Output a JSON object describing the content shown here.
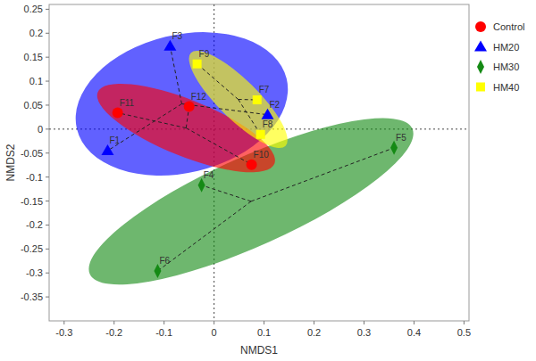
{
  "chart_data": {
    "type": "scatter",
    "x_label": "NMDS1",
    "y_label": "NMDS2",
    "xlim": [
      -0.33,
      0.51
    ],
    "ylim": [
      -0.4,
      0.26
    ],
    "xticks": [
      -0.3,
      -0.2,
      -0.1,
      0,
      0.1,
      0.2,
      0.3,
      0.4,
      0.5
    ],
    "yticks": [
      -0.35,
      -0.3,
      -0.25,
      -0.2,
      -0.15,
      -0.1,
      -0.05,
      0,
      0.05,
      0.1,
      0.15,
      0.2,
      0.25
    ],
    "grid": false,
    "legend": "right",
    "series": [
      {
        "name": "Control",
        "color": "#ff0000",
        "marker": "circle",
        "labels": [
          "F10",
          "F11",
          "F12"
        ],
        "x": [
          0.075,
          -0.193,
          -0.05
        ],
        "values": [
          -0.074,
          0.034,
          0.047
        ]
      },
      {
        "name": "HM20",
        "color": "#0000ff",
        "marker": "triangle",
        "labels": [
          "F1",
          "F2",
          "F3"
        ],
        "x": [
          -0.213,
          0.107,
          -0.088
        ],
        "values": [
          -0.045,
          0.03,
          0.173
        ]
      },
      {
        "name": "HM30",
        "color": "#158a15",
        "marker": "diamond",
        "labels": [
          "F4",
          "F5",
          "F6"
        ],
        "x": [
          -0.025,
          0.36,
          -0.113
        ],
        "values": [
          -0.117,
          -0.039,
          -0.296
        ]
      },
      {
        "name": "HM40",
        "color": "#ffff00",
        "marker": "square",
        "labels": [
          "F7",
          "F8",
          "F9"
        ],
        "x": [
          0.086,
          0.093,
          -0.034
        ],
        "values": [
          0.061,
          -0.011,
          0.136
        ]
      }
    ]
  }
}
